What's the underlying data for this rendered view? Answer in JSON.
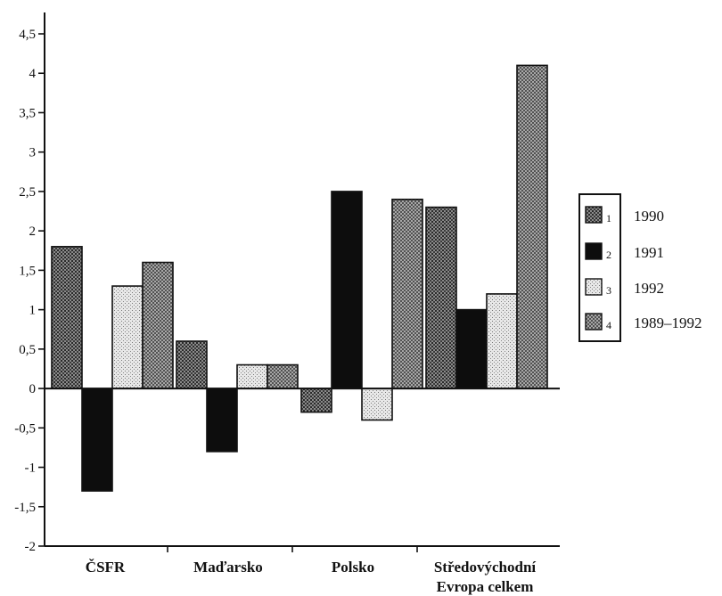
{
  "chart_data": {
    "type": "bar",
    "categories": [
      [
        "ČSFR"
      ],
      [
        "Maďarsko"
      ],
      [
        "Polsko"
      ],
      [
        "Středovýchodní",
        "Evropa celkem"
      ]
    ],
    "series": [
      {
        "name": "1990",
        "key": "1",
        "fill": "dots-dark",
        "values": [
          1.8,
          0.6,
          -0.3,
          2.3
        ]
      },
      {
        "name": "1991",
        "key": "2",
        "fill": "solid-black",
        "values": [
          -1.3,
          -0.8,
          2.5,
          1.0
        ]
      },
      {
        "name": "1992",
        "key": "3",
        "fill": "dots-light",
        "values": [
          1.3,
          0.3,
          -0.4,
          1.2
        ]
      },
      {
        "name": "1989–1992",
        "key": "4",
        "fill": "cross-hatch",
        "values": [
          1.6,
          0.3,
          2.4,
          4.1
        ]
      }
    ],
    "yticks": [
      "-2",
      "-1,5",
      "-1",
      "-0,5",
      "0",
      "0,5",
      "1",
      "1,5",
      "2",
      "2,5",
      "3",
      "3,5",
      "4",
      "4,5"
    ],
    "ylim": [
      -2,
      4.6
    ],
    "legend": "right",
    "grid": false,
    "colors": {
      "ink": "#111111",
      "paper": "#ffffff"
    }
  }
}
